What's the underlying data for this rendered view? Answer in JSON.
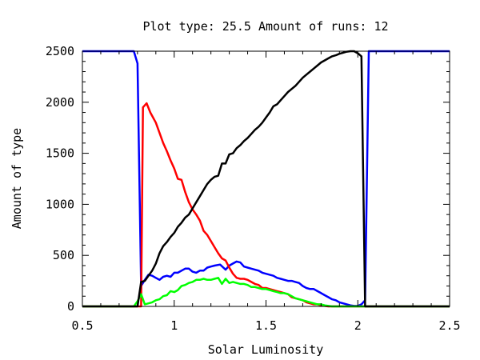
{
  "chart_data": {
    "type": "line",
    "title": "Plot type: 25.5 Amount of runs: 12",
    "xlabel": "Solar Luminosity",
    "ylabel": "Amount of type",
    "xlim": [
      0.5,
      2.5
    ],
    "ylim": [
      0,
      2500
    ],
    "x_ticks": [
      "0.5",
      "1",
      "1.5",
      "2",
      "2.5"
    ],
    "y_ticks": [
      "0",
      "500",
      "1000",
      "1500",
      "2000",
      "2500"
    ],
    "x_tick_values": [
      0.5,
      1,
      1.5,
      2,
      2.5
    ],
    "y_tick_values": [
      0,
      500,
      1000,
      1500,
      2000,
      2500
    ],
    "grid": false,
    "legend": "none",
    "series": [
      {
        "color": "#0000ff",
        "points": [
          [
            0.5,
            2500
          ],
          [
            0.78,
            2500
          ],
          [
            0.8,
            2380
          ],
          [
            0.82,
            200
          ],
          [
            0.84,
            260
          ],
          [
            0.86,
            310
          ],
          [
            0.88,
            300
          ],
          [
            0.9,
            280
          ],
          [
            0.92,
            260
          ],
          [
            0.94,
            290
          ],
          [
            0.96,
            300
          ],
          [
            0.98,
            290
          ],
          [
            1.0,
            330
          ],
          [
            1.02,
            330
          ],
          [
            1.04,
            350
          ],
          [
            1.06,
            370
          ],
          [
            1.08,
            370
          ],
          [
            1.1,
            340
          ],
          [
            1.12,
            330
          ],
          [
            1.14,
            350
          ],
          [
            1.16,
            350
          ],
          [
            1.18,
            380
          ],
          [
            1.2,
            390
          ],
          [
            1.22,
            400
          ],
          [
            1.25,
            410
          ],
          [
            1.28,
            360
          ],
          [
            1.3,
            400
          ],
          [
            1.32,
            420
          ],
          [
            1.34,
            440
          ],
          [
            1.36,
            430
          ],
          [
            1.38,
            390
          ],
          [
            1.4,
            380
          ],
          [
            1.42,
            370
          ],
          [
            1.44,
            360
          ],
          [
            1.46,
            350
          ],
          [
            1.48,
            330
          ],
          [
            1.5,
            320
          ],
          [
            1.52,
            310
          ],
          [
            1.54,
            300
          ],
          [
            1.56,
            280
          ],
          [
            1.58,
            270
          ],
          [
            1.6,
            260
          ],
          [
            1.62,
            250
          ],
          [
            1.64,
            250
          ],
          [
            1.66,
            240
          ],
          [
            1.68,
            230
          ],
          [
            1.7,
            200
          ],
          [
            1.72,
            180
          ],
          [
            1.74,
            170
          ],
          [
            1.76,
            170
          ],
          [
            1.78,
            150
          ],
          [
            1.8,
            130
          ],
          [
            1.82,
            110
          ],
          [
            1.84,
            90
          ],
          [
            1.86,
            70
          ],
          [
            1.88,
            60
          ],
          [
            1.9,
            40
          ],
          [
            1.92,
            30
          ],
          [
            1.94,
            20
          ],
          [
            1.96,
            10
          ],
          [
            1.98,
            5
          ],
          [
            2.0,
            5
          ],
          [
            2.02,
            20
          ],
          [
            2.04,
            60
          ],
          [
            2.06,
            2500
          ],
          [
            2.5,
            2500
          ]
        ]
      },
      {
        "color": "#ff0000",
        "points": [
          [
            0.5,
            0
          ],
          [
            0.8,
            0
          ],
          [
            0.82,
            0
          ],
          [
            0.83,
            1950
          ],
          [
            0.85,
            1990
          ],
          [
            0.87,
            1900
          ],
          [
            0.9,
            1800
          ],
          [
            0.92,
            1700
          ],
          [
            0.94,
            1600
          ],
          [
            0.96,
            1520
          ],
          [
            0.98,
            1430
          ],
          [
            1.0,
            1350
          ],
          [
            1.02,
            1250
          ],
          [
            1.04,
            1240
          ],
          [
            1.06,
            1120
          ],
          [
            1.08,
            1020
          ],
          [
            1.1,
            950
          ],
          [
            1.12,
            900
          ],
          [
            1.14,
            840
          ],
          [
            1.16,
            740
          ],
          [
            1.18,
            700
          ],
          [
            1.2,
            640
          ],
          [
            1.22,
            580
          ],
          [
            1.24,
            520
          ],
          [
            1.26,
            470
          ],
          [
            1.28,
            450
          ],
          [
            1.3,
            380
          ],
          [
            1.32,
            320
          ],
          [
            1.34,
            280
          ],
          [
            1.36,
            270
          ],
          [
            1.38,
            270
          ],
          [
            1.4,
            260
          ],
          [
            1.42,
            240
          ],
          [
            1.44,
            220
          ],
          [
            1.46,
            210
          ],
          [
            1.48,
            180
          ],
          [
            1.5,
            180
          ],
          [
            1.52,
            170
          ],
          [
            1.54,
            160
          ],
          [
            1.56,
            150
          ],
          [
            1.58,
            140
          ],
          [
            1.6,
            130
          ],
          [
            1.62,
            120
          ],
          [
            1.64,
            90
          ],
          [
            1.66,
            80
          ],
          [
            1.68,
            70
          ],
          [
            1.7,
            60
          ],
          [
            1.72,
            40
          ],
          [
            1.74,
            30
          ],
          [
            1.76,
            20
          ],
          [
            1.78,
            20
          ],
          [
            1.8,
            10
          ],
          [
            1.82,
            5
          ],
          [
            1.84,
            0
          ],
          [
            2.5,
            0
          ]
        ]
      },
      {
        "color": "#00ff00",
        "points": [
          [
            0.5,
            0
          ],
          [
            0.78,
            0
          ],
          [
            0.8,
            50
          ],
          [
            0.82,
            120
          ],
          [
            0.84,
            20
          ],
          [
            0.86,
            30
          ],
          [
            0.88,
            40
          ],
          [
            0.9,
            60
          ],
          [
            0.92,
            70
          ],
          [
            0.94,
            100
          ],
          [
            0.96,
            110
          ],
          [
            0.98,
            150
          ],
          [
            1.0,
            140
          ],
          [
            1.02,
            160
          ],
          [
            1.04,
            200
          ],
          [
            1.06,
            210
          ],
          [
            1.08,
            230
          ],
          [
            1.1,
            240
          ],
          [
            1.12,
            260
          ],
          [
            1.14,
            260
          ],
          [
            1.16,
            270
          ],
          [
            1.18,
            260
          ],
          [
            1.2,
            260
          ],
          [
            1.22,
            270
          ],
          [
            1.24,
            280
          ],
          [
            1.26,
            220
          ],
          [
            1.28,
            270
          ],
          [
            1.3,
            230
          ],
          [
            1.32,
            240
          ],
          [
            1.34,
            230
          ],
          [
            1.36,
            220
          ],
          [
            1.38,
            220
          ],
          [
            1.4,
            210
          ],
          [
            1.42,
            190
          ],
          [
            1.44,
            190
          ],
          [
            1.46,
            180
          ],
          [
            1.48,
            170
          ],
          [
            1.5,
            170
          ],
          [
            1.52,
            160
          ],
          [
            1.54,
            150
          ],
          [
            1.56,
            140
          ],
          [
            1.58,
            130
          ],
          [
            1.6,
            130
          ],
          [
            1.62,
            120
          ],
          [
            1.64,
            100
          ],
          [
            1.66,
            80
          ],
          [
            1.68,
            70
          ],
          [
            1.7,
            60
          ],
          [
            1.72,
            50
          ],
          [
            1.74,
            40
          ],
          [
            1.76,
            30
          ],
          [
            1.78,
            20
          ],
          [
            1.8,
            20
          ],
          [
            1.82,
            10
          ],
          [
            1.84,
            5
          ],
          [
            1.86,
            0
          ],
          [
            2.5,
            0
          ]
        ]
      },
      {
        "color": "#000000",
        "points": [
          [
            0.5,
            0
          ],
          [
            0.8,
            0
          ],
          [
            0.82,
            240
          ],
          [
            0.84,
            250
          ],
          [
            0.86,
            300
          ],
          [
            0.88,
            350
          ],
          [
            0.9,
            420
          ],
          [
            0.92,
            520
          ],
          [
            0.94,
            590
          ],
          [
            0.96,
            630
          ],
          [
            0.98,
            680
          ],
          [
            1.0,
            720
          ],
          [
            1.02,
            780
          ],
          [
            1.04,
            820
          ],
          [
            1.06,
            870
          ],
          [
            1.08,
            900
          ],
          [
            1.1,
            960
          ],
          [
            1.12,
            1020
          ],
          [
            1.14,
            1080
          ],
          [
            1.16,
            1140
          ],
          [
            1.18,
            1200
          ],
          [
            1.2,
            1240
          ],
          [
            1.22,
            1270
          ],
          [
            1.24,
            1280
          ],
          [
            1.26,
            1400
          ],
          [
            1.28,
            1400
          ],
          [
            1.3,
            1490
          ],
          [
            1.32,
            1500
          ],
          [
            1.34,
            1550
          ],
          [
            1.36,
            1580
          ],
          [
            1.38,
            1620
          ],
          [
            1.4,
            1650
          ],
          [
            1.42,
            1690
          ],
          [
            1.44,
            1730
          ],
          [
            1.46,
            1760
          ],
          [
            1.48,
            1800
          ],
          [
            1.5,
            1850
          ],
          [
            1.52,
            1900
          ],
          [
            1.54,
            1960
          ],
          [
            1.56,
            1980
          ],
          [
            1.58,
            2020
          ],
          [
            1.6,
            2060
          ],
          [
            1.62,
            2100
          ],
          [
            1.64,
            2130
          ],
          [
            1.66,
            2160
          ],
          [
            1.68,
            2200
          ],
          [
            1.7,
            2240
          ],
          [
            1.72,
            2270
          ],
          [
            1.74,
            2300
          ],
          [
            1.76,
            2330
          ],
          [
            1.78,
            2360
          ],
          [
            1.8,
            2390
          ],
          [
            1.82,
            2410
          ],
          [
            1.84,
            2430
          ],
          [
            1.86,
            2450
          ],
          [
            1.88,
            2460
          ],
          [
            1.9,
            2475
          ],
          [
            1.92,
            2485
          ],
          [
            1.94,
            2495
          ],
          [
            1.96,
            2500
          ],
          [
            1.98,
            2500
          ],
          [
            2.0,
            2480
          ],
          [
            2.02,
            2450
          ],
          [
            2.04,
            0
          ],
          [
            2.5,
            0
          ]
        ]
      }
    ]
  }
}
